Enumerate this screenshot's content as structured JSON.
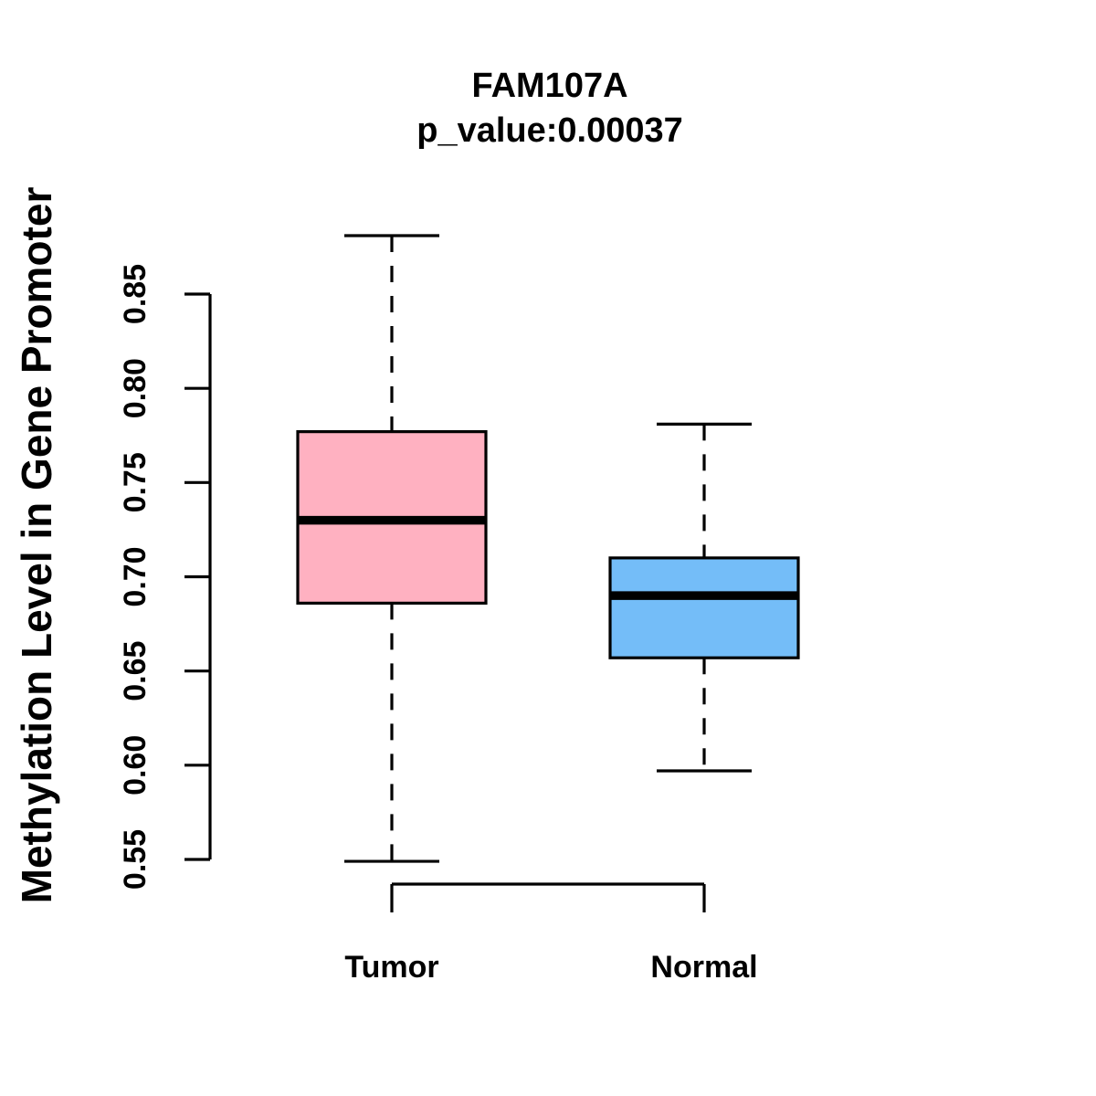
{
  "figure": {
    "title": "FAM107A",
    "subtitle": "p_value:0.00037",
    "y_axis_label": "Methylation Level in Gene Promoter"
  },
  "chart_data": {
    "type": "boxplot",
    "title": "FAM107A",
    "subtitle": "p_value:0.00037",
    "ylabel": "Methylation Level in Gene Promoter",
    "xlabel": "",
    "ylim": [
      0.55,
      0.85
    ],
    "yticks": [
      0.55,
      0.6,
      0.65,
      0.7,
      0.75,
      0.8,
      0.85
    ],
    "ytick_labels": [
      "0.55",
      "0.60",
      "0.65",
      "0.70",
      "0.75",
      "0.80",
      "0.85"
    ],
    "categories": [
      "Tumor",
      "Normal"
    ],
    "grid": false,
    "legend": "none",
    "series": [
      {
        "name": "Tumor",
        "color": "#FFB1C1",
        "lower_whisker": 0.549,
        "q1": 0.686,
        "median": 0.73,
        "q3": 0.777,
        "upper_whisker": 0.881
      },
      {
        "name": "Normal",
        "color": "#74BDF8",
        "lower_whisker": 0.597,
        "q1": 0.657,
        "median": 0.69,
        "q3": 0.71,
        "upper_whisker": 0.781
      }
    ],
    "colors": {
      "box_border": "#000000",
      "median_line": "#000000",
      "whisker": "#000000",
      "axis": "#000000",
      "background": "#FFFFFF"
    }
  }
}
